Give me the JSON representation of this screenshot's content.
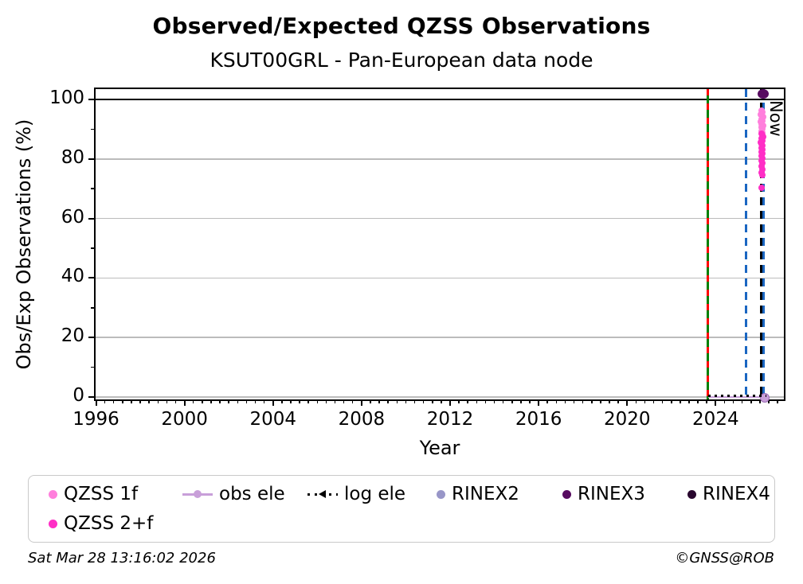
{
  "header": {
    "title": "Observed/Expected QZSS Observations",
    "subtitle": "KSUT00GRL - Pan-European data node"
  },
  "footer": {
    "timestamp": "Sat Mar 28 13:16:02 2026",
    "copyright": "©GNSS@ROB"
  },
  "chart_data": {
    "type": "scatter",
    "title": "Observed/Expected QZSS Observations",
    "subtitle": "KSUT00GRL - Pan-European data node",
    "xlabel": "Year",
    "ylabel": "Obs/Exp Observations (%)",
    "xlim": [
      1995.9,
      2027.15
    ],
    "ylim": [
      -1.5,
      104.5
    ],
    "x_major_ticks": [
      1996,
      2000,
      2004,
      2008,
      2012,
      2016,
      2020,
      2024
    ],
    "y_major_ticks": [
      0,
      20,
      40,
      60,
      80,
      100
    ],
    "y_minor_ticks": [
      10,
      30,
      50,
      70,
      90
    ],
    "grid": "horizontal-major",
    "grid_color": "#bcbcbc",
    "now_label": "Now",
    "reference_lines": [
      {
        "axis": "y",
        "value": 100,
        "color": "#000000",
        "style": "solid"
      }
    ],
    "event_lines": [
      {
        "x": 2023.65,
        "color": "#008000",
        "style": "solid",
        "overlay_color": "#ff0000",
        "overlay_style": "dashed"
      },
      {
        "x": 2025.36,
        "color": "#1a66c2",
        "style": "dashed"
      },
      {
        "x": 2026.05,
        "color": "#000000",
        "style": "dashed",
        "label": "Now"
      },
      {
        "x": 2026.15,
        "color": "#1a66c2",
        "style": "dashed"
      }
    ],
    "series": [
      {
        "name": "QZSS 1f",
        "type": "scatter",
        "color": "#ff7fdc",
        "marker_size": 8,
        "points": [
          [
            2026.08,
            96.2
          ],
          [
            2026.12,
            95.6
          ],
          [
            2026.05,
            95.0
          ],
          [
            2026.1,
            94.5
          ],
          [
            2026.14,
            94.0
          ],
          [
            2026.07,
            93.4
          ],
          [
            2026.11,
            92.9
          ],
          [
            2026.04,
            92.4
          ],
          [
            2026.09,
            91.8
          ],
          [
            2026.13,
            91.2
          ],
          [
            2026.06,
            90.6
          ],
          [
            2026.1,
            90.0
          ],
          [
            2026.08,
            89.4
          ],
          [
            2026.12,
            88.9
          ]
        ]
      },
      {
        "name": "QZSS 2+f",
        "type": "scatter",
        "color": "#ff2ec6",
        "marker_size": 8,
        "points": [
          [
            2026.06,
            88.5
          ],
          [
            2026.1,
            88.0
          ],
          [
            2026.13,
            87.4
          ],
          [
            2026.07,
            86.8
          ],
          [
            2026.11,
            86.2
          ],
          [
            2026.05,
            85.6
          ],
          [
            2026.09,
            85.0
          ],
          [
            2026.12,
            84.4
          ],
          [
            2026.06,
            83.8
          ],
          [
            2026.1,
            83.1
          ],
          [
            2026.08,
            82.4
          ],
          [
            2026.12,
            81.8
          ],
          [
            2026.07,
            81.1
          ],
          [
            2026.1,
            80.3
          ],
          [
            2026.09,
            79.5
          ],
          [
            2026.11,
            78.6
          ],
          [
            2026.08,
            77.6
          ],
          [
            2026.1,
            76.4
          ],
          [
            2026.09,
            75.3
          ],
          [
            2026.11,
            74.5
          ],
          [
            2026.09,
            70.4
          ]
        ]
      },
      {
        "name": "obs ele",
        "type": "line",
        "style": "solid",
        "color": "#c89fd9",
        "marker_size": 10,
        "points": [
          [
            2023.65,
            0
          ],
          [
            2026.18,
            0
          ]
        ],
        "end_marker": [
          2026.17,
          0
        ]
      },
      {
        "name": "log ele",
        "type": "line",
        "style": "dotted",
        "color": "#000000",
        "points": [
          [
            2023.65,
            0.5
          ],
          [
            2026.28,
            0.5
          ]
        ]
      },
      {
        "name": "RINEX2",
        "type": "scatter",
        "color": "#9896c8",
        "marker_size": 11,
        "points": []
      },
      {
        "name": "RINEX3",
        "type": "scatter",
        "color": "#570b60",
        "marker_size": 12,
        "points": [
          [
            2026.1,
            101.8
          ]
        ]
      },
      {
        "name": "RINEX4",
        "type": "scatter",
        "color": "#29072e",
        "marker_size": 11,
        "points": []
      }
    ],
    "legend_rows": [
      [
        "QZSS 1f",
        "obs ele",
        "log ele",
        "RINEX2",
        "RINEX3",
        "RINEX4"
      ],
      [
        "QZSS 2+f"
      ]
    ]
  }
}
